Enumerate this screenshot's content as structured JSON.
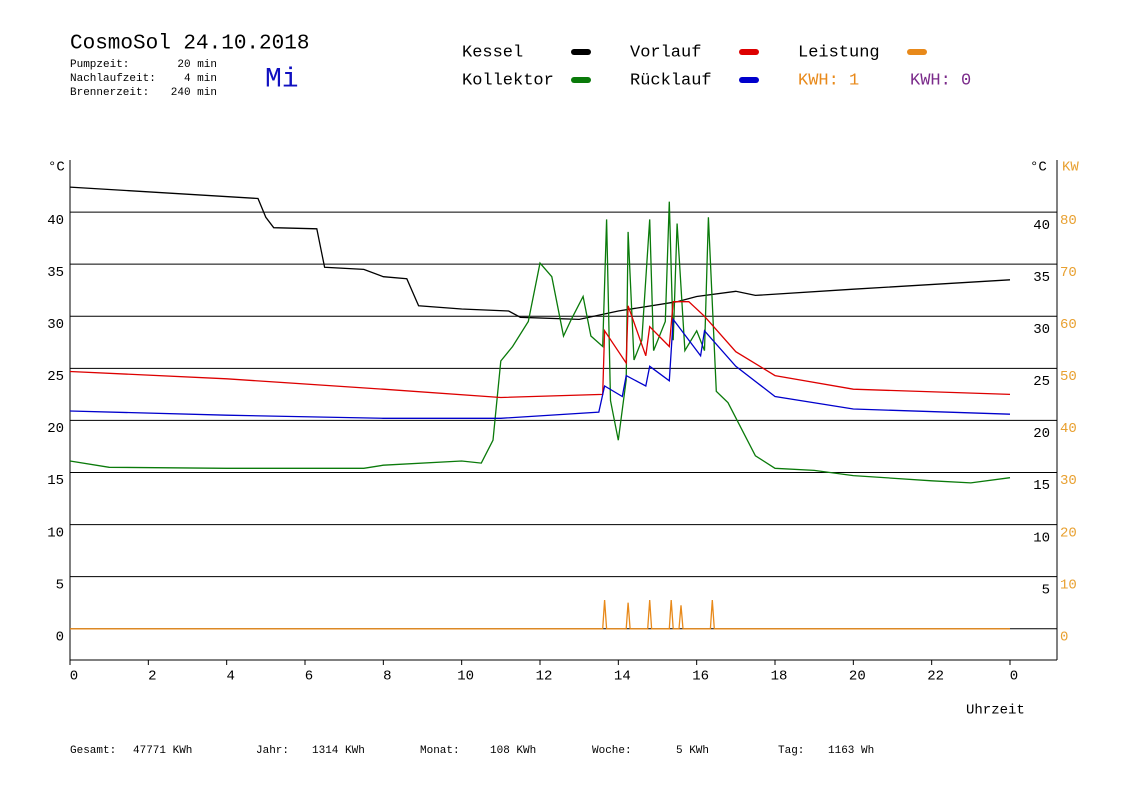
{
  "header": {
    "title": "CosmoSol 24.10.2018",
    "weekday": "Mi",
    "info": [
      {
        "label": "Pumpzeit:",
        "value": "20 min"
      },
      {
        "label": "Nachlaufzeit:",
        "value": "4 min"
      },
      {
        "label": "Brennerzeit:",
        "value": "240 min"
      }
    ],
    "kwh_labels": [
      {
        "text": "KWH: 1",
        "color": "#e8891a"
      },
      {
        "text": "KWH: 0",
        "color": "#7a2a8a"
      }
    ]
  },
  "chart_data": {
    "type": "line",
    "y_unit": "°C",
    "y2_unit": "KW",
    "y2_color": "#e8a030",
    "xlabel": "Uhrzeit",
    "xlim": [
      0,
      25.2
    ],
    "xticks": [
      0,
      2,
      4,
      6,
      8,
      10,
      12,
      14,
      16,
      18,
      20,
      22,
      {
        "value": 24,
        "label": "0"
      }
    ],
    "ylim": [
      -3,
      45
    ],
    "yticks": [
      0,
      5,
      10,
      15,
      20,
      25,
      30,
      35,
      40
    ],
    "y2lim": [
      -6,
      90
    ],
    "y2ticks": [
      0,
      10,
      20,
      30,
      40,
      50,
      60,
      70,
      80
    ],
    "grid": true,
    "series": [
      {
        "name": "Kessel",
        "color": "#000000",
        "x": [
          0,
          4.8,
          5,
          5.2,
          6.3,
          6.5,
          7.5,
          8,
          8.6,
          8.9,
          10,
          11.2,
          11.5,
          13,
          14,
          15.5,
          16,
          17,
          17.5,
          20,
          24
        ],
        "values": [
          42.4,
          41.3,
          39.5,
          38.5,
          38.4,
          34.7,
          34.5,
          33.8,
          33.6,
          31.0,
          30.7,
          30.5,
          29.9,
          29.7,
          30.5,
          31.4,
          31.9,
          32.4,
          32.0,
          32.6,
          33.5
        ]
      },
      {
        "name": "Kollektor",
        "color": "#0a7a0a",
        "x": [
          0,
          1,
          4,
          7.5,
          8,
          10,
          10.5,
          10.8,
          11,
          11.3,
          11.7,
          12,
          12.3,
          12.6,
          12.8,
          13.1,
          13.3,
          13.6,
          13.7,
          13.8,
          14,
          14.2,
          14.25,
          14.4,
          14.6,
          14.8,
          14.9,
          15.2,
          15.3,
          15.4,
          15.5,
          15.7,
          16,
          16.2,
          16.3,
          16.5,
          16.8,
          17.5,
          18,
          19,
          20,
          22,
          23,
          24
        ],
        "values": [
          16.1,
          15.5,
          15.4,
          15.4,
          15.7,
          16.1,
          15.9,
          18.1,
          25.7,
          27.1,
          29.5,
          35.1,
          33.8,
          28.1,
          29.7,
          31.9,
          28.1,
          27.1,
          39.3,
          21.9,
          18.1,
          23.9,
          38.1,
          25.8,
          27.7,
          39.3,
          26.7,
          29.5,
          41.0,
          27.7,
          38.9,
          26.7,
          28.6,
          26.7,
          39.5,
          22.8,
          21.7,
          16.6,
          15.4,
          15.2,
          14.7,
          14.2,
          14.0,
          14.5
        ]
      },
      {
        "name": "Vorlauf",
        "color": "#dd0000",
        "x": [
          0,
          4,
          8,
          11,
          13.6,
          13.65,
          14.2,
          14.25,
          14.7,
          14.8,
          15.3,
          15.4,
          15.8,
          16.2,
          17,
          18,
          20,
          24
        ],
        "values": [
          24.7,
          24.0,
          23.0,
          22.2,
          22.5,
          28.6,
          25.5,
          31.0,
          26.2,
          29.0,
          27.1,
          31.4,
          31.4,
          30.0,
          26.6,
          24.3,
          23.0,
          22.5
        ]
      },
      {
        "name": "Rücklauf",
        "color": "#0000cc",
        "x": [
          0,
          4,
          8,
          11,
          13.5,
          13.65,
          14.1,
          14.2,
          14.7,
          14.8,
          15.3,
          15.4,
          16.1,
          16.2,
          17,
          18,
          20,
          24
        ],
        "values": [
          20.9,
          20.5,
          20.2,
          20.2,
          20.8,
          23.3,
          22.3,
          24.3,
          23.3,
          25.2,
          23.8,
          29.7,
          26.2,
          28.6,
          25.2,
          22.3,
          21.1,
          20.6
        ]
      },
      {
        "name": "Leistung",
        "color": "#e8891a",
        "axis": "y2",
        "x": [
          0,
          13.6,
          13.65,
          13.7,
          14.2,
          14.25,
          14.3,
          14.75,
          14.8,
          14.85,
          15.3,
          15.35,
          15.4,
          15.55,
          15.6,
          15.65,
          16.35,
          16.4,
          16.45,
          24
        ],
        "values": [
          0,
          0,
          5.5,
          0,
          0,
          5,
          0,
          0,
          5.5,
          0,
          0,
          5.5,
          0,
          0,
          4.5,
          0,
          0,
          5.5,
          0,
          0
        ]
      }
    ]
  },
  "footer": [
    {
      "label": "Gesamt:",
      "value": "47771 KWh"
    },
    {
      "label": "Jahr:",
      "value": "1314 KWh"
    },
    {
      "label": "Monat:",
      "value": "108 KWh"
    },
    {
      "label": "Woche:",
      "value": "5 KWh"
    },
    {
      "label": "Tag:",
      "value": "1163 Wh"
    }
  ]
}
